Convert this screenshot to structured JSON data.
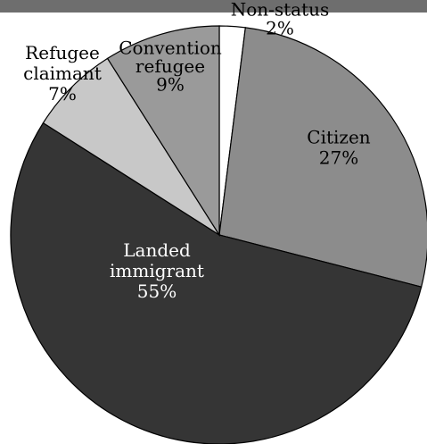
{
  "chart_data": {
    "type": "pie",
    "title": "",
    "slices": [
      {
        "label": [
          "Non-status"
        ],
        "value": "2%",
        "percent": 2,
        "color": "#ffffff",
        "text_color": "#000000"
      },
      {
        "label": [
          "Citizen"
        ],
        "value": "27%",
        "percent": 27,
        "color": "#8c8c8c",
        "text_color": "#000000"
      },
      {
        "label": [
          "Landed",
          "immigrant"
        ],
        "value": "55%",
        "percent": 55,
        "color": "#353535",
        "text_color": "#ffffff"
      },
      {
        "label": [
          "Refugee",
          "claimant"
        ],
        "value": "7%",
        "percent": 7,
        "color": "#c8c8c8",
        "text_color": "#000000"
      },
      {
        "label": [
          "Convention",
          "refugee"
        ],
        "value": "9%",
        "percent": 9,
        "color": "#9a9a9a",
        "text_color": "#000000"
      }
    ]
  }
}
